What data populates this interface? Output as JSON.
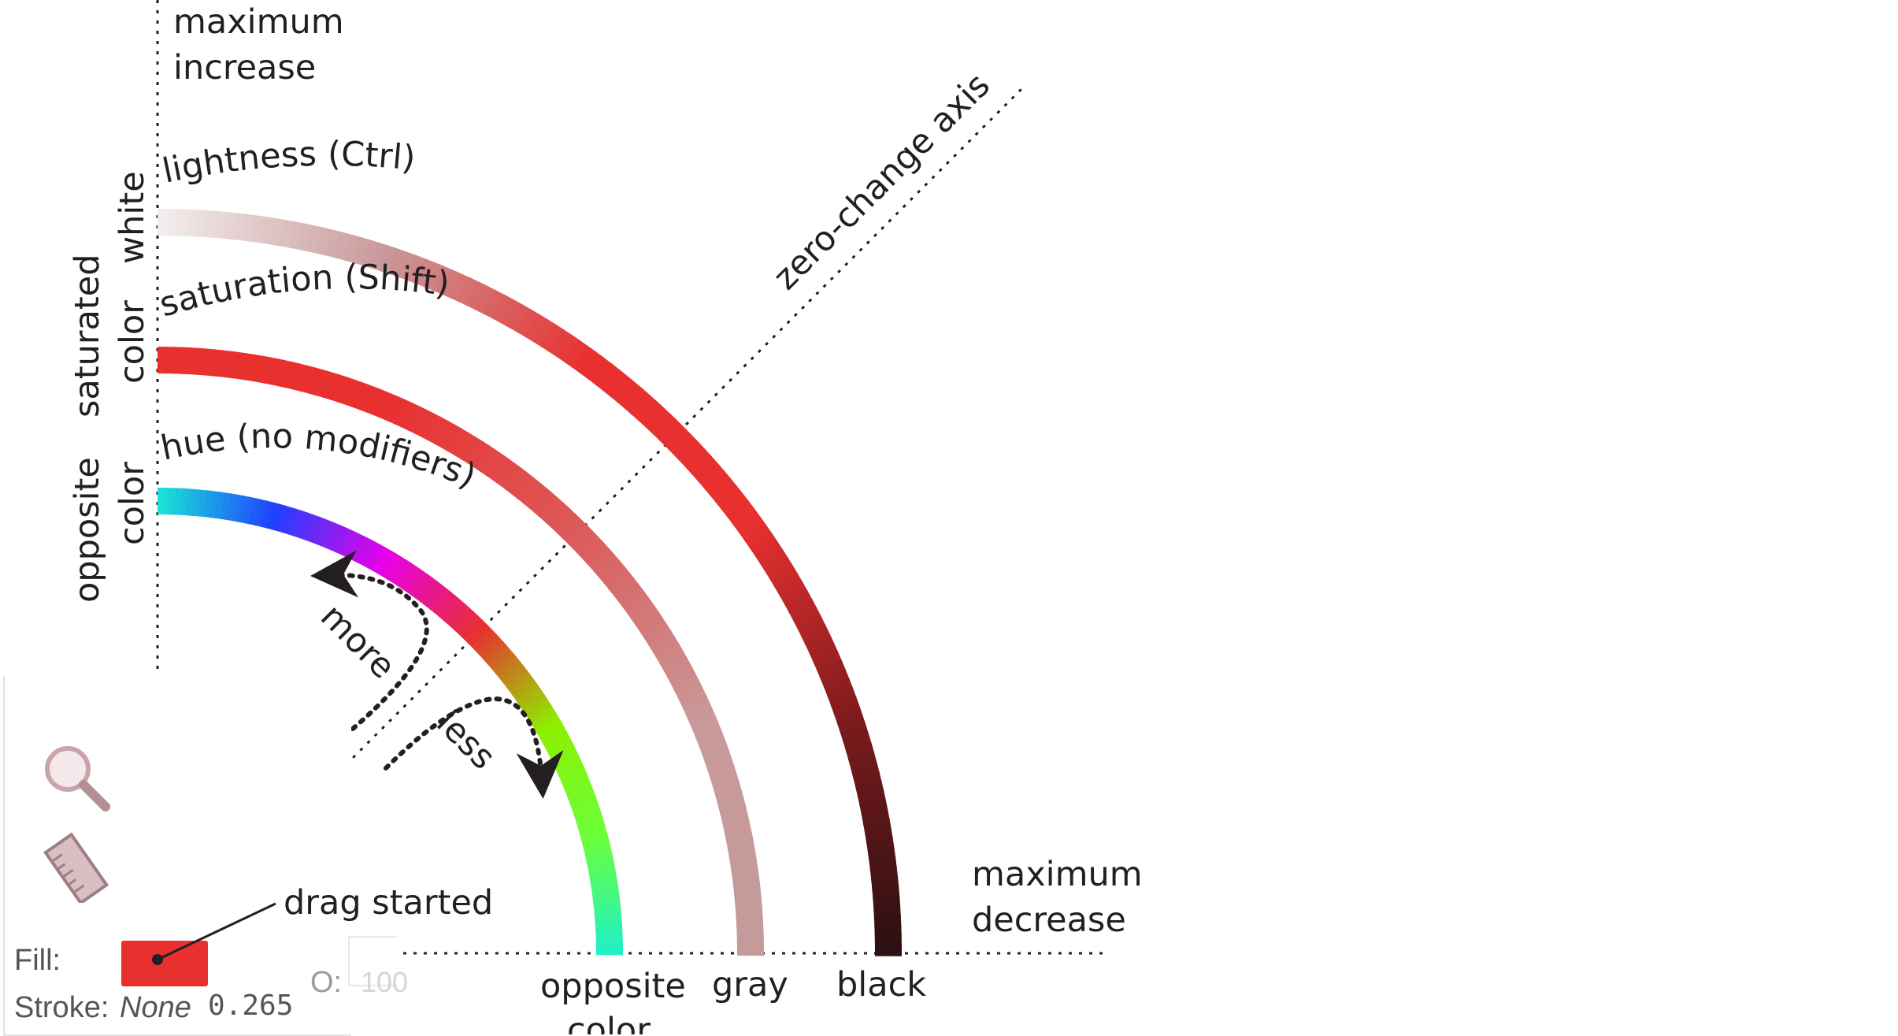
{
  "axes": {
    "vertical_top_line1": "maximum",
    "vertical_top_line2": "increase",
    "horizontal_right_line1": "maximum",
    "horizontal_right_line2": "decrease",
    "diagonal": "zero-change axis"
  },
  "arcs": {
    "lightness": {
      "label": "lightness (Ctrl)",
      "start_label": "white",
      "end_label": "black",
      "colors": [
        "#f3eeee",
        "#c9999a",
        "#e8302f",
        "#e8302f",
        "#7a1a1c",
        "#2a1012"
      ]
    },
    "saturation": {
      "label": "saturation (Shift)",
      "start_label_line1": "saturated",
      "start_label_line2": "color",
      "end_label": "gray",
      "colors": [
        "#e8302f",
        "#e8302f",
        "#dd5a5a",
        "#c99a9a",
        "#c49a9b"
      ]
    },
    "hue": {
      "label": "hue (no modifiers)",
      "start_label_line1": "opposite",
      "start_label_line2": "color",
      "end_label_line1": "opposite",
      "end_label_line2": "color",
      "colors": [
        "#1ae6d6",
        "#2040ff",
        "#e800e8",
        "#e8302f",
        "#8cf000",
        "#6cff3a",
        "#1ef0c8"
      ]
    }
  },
  "annotations": {
    "more": "more",
    "less": "less",
    "drag_started": "drag started"
  },
  "inkscape_status": {
    "fill_label": "Fill:",
    "fill_color": "#e8302f",
    "stroke_label": "Stroke:",
    "stroke_value": "None",
    "stroke_width": "0.265",
    "opacity_label": "O:",
    "opacity_value": "100"
  },
  "icons": {
    "zoom": "magnifier-icon",
    "measure": "ruler-icon"
  }
}
